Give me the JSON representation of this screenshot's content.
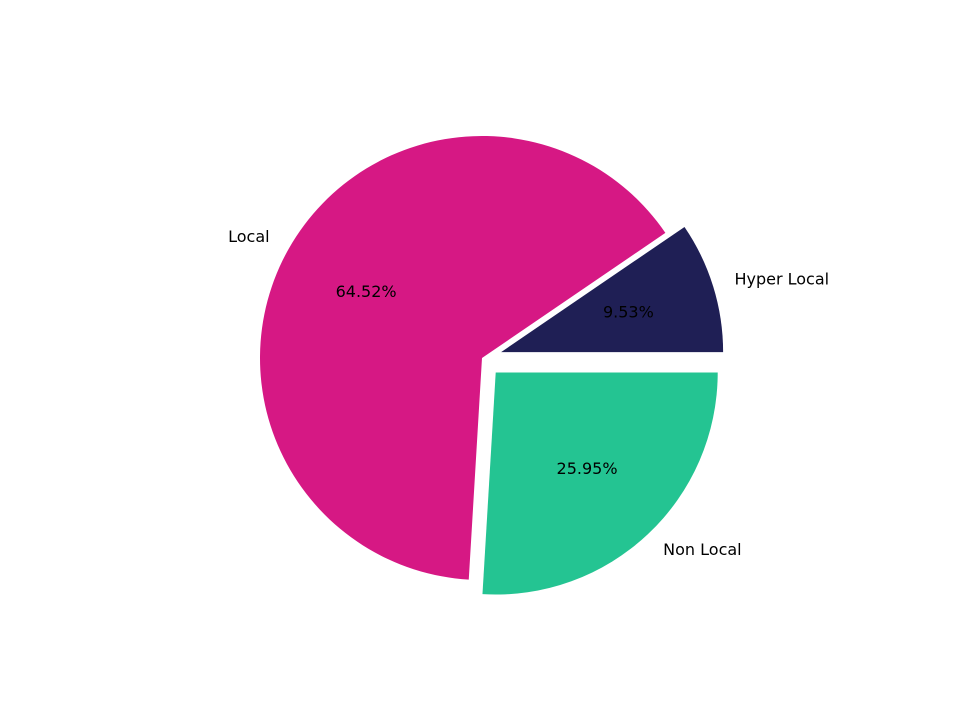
{
  "chart_data": {
    "type": "pie",
    "categories": [
      "Hyper Local",
      "Local",
      "Non Local"
    ],
    "values": [
      9.53,
      64.52,
      25.95
    ],
    "value_labels": [
      "9.53%",
      "64.52%",
      "25.95%"
    ],
    "colors": [
      "#1f1f55",
      "#d61884",
      "#24c492"
    ]
  }
}
